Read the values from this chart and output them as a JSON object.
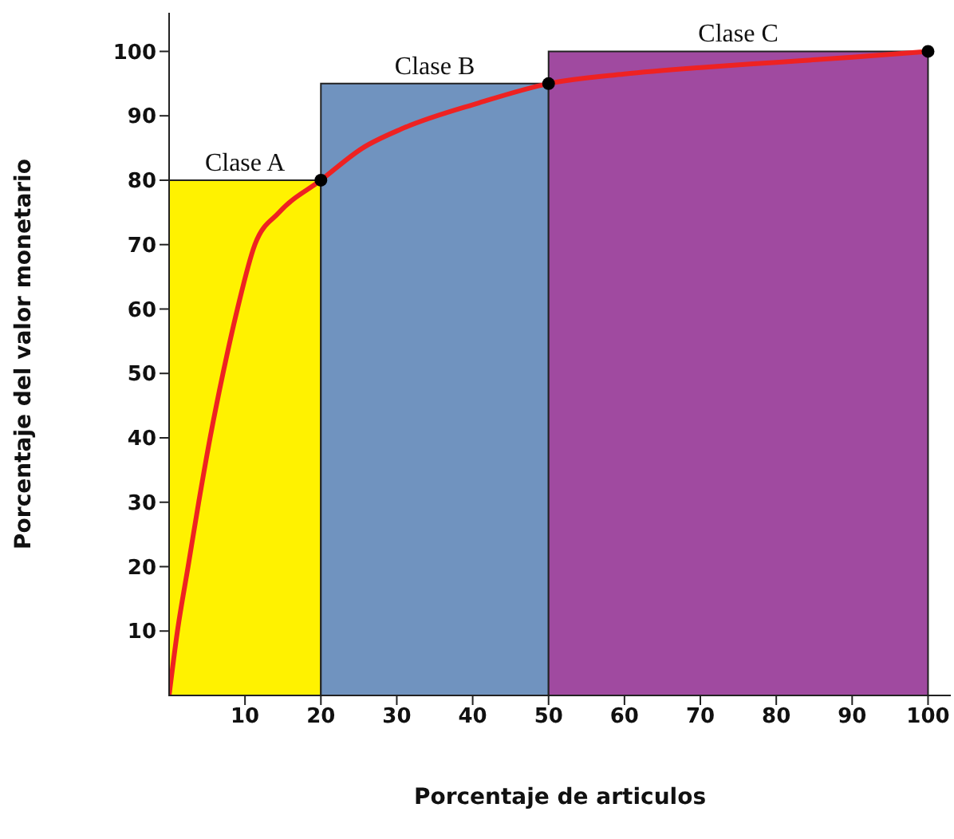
{
  "chart_data": {
    "type": "histogram",
    "xlabel": "Porcentaje de articulos",
    "ylabel": "Porcentaje del valor monetario",
    "bins": [
      0,
      20,
      50,
      100
    ],
    "values": [
      80,
      95,
      100
    ],
    "colors": [
      "#fff200",
      "#7093bf",
      "#a04aa0"
    ],
    "xlim": [
      0,
      103
    ],
    "ylim": [
      0,
      106
    ],
    "xticks": [
      10,
      20,
      30,
      40,
      50,
      60,
      70,
      80,
      90,
      100
    ],
    "yticks": [
      10,
      20,
      30,
      40,
      50,
      60,
      70,
      80,
      90,
      100
    ],
    "grid": false,
    "legend": false,
    "series": [
      {
        "type": "line",
        "color": "#ee2222",
        "marker": "none",
        "x": [
          0,
          1.1,
          2.5,
          3.9,
          5.4,
          7.1,
          9,
          11.3,
          14.5,
          20,
          25.5,
          30.7,
          40.8,
          50,
          60,
          70,
          80,
          90,
          100
        ],
        "values": [
          0,
          10,
          20,
          30,
          40,
          50,
          60,
          70,
          75,
          80,
          85,
          88,
          92,
          95,
          96.5,
          97.5,
          98.3,
          99.1,
          100
        ]
      },
      {
        "type": "scatter",
        "color": "#000000",
        "marker": "circle",
        "x": [
          20,
          50,
          100
        ],
        "values": [
          80,
          95,
          100
        ]
      }
    ],
    "annotations": [
      {
        "text": "Clase A",
        "x": 10,
        "y": 80
      },
      {
        "text": "Clase B",
        "x": 35,
        "y": 95
      },
      {
        "text": "Clase C",
        "x": 75,
        "y": 100
      }
    ]
  }
}
